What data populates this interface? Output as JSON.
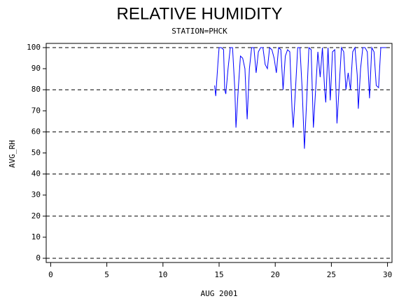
{
  "chart_data": {
    "type": "line",
    "title": "RELATIVE HUMIDITY",
    "subtitle": "STATION=PHCK",
    "x_label": "AUG 2001",
    "y_label": "AVG_RH",
    "xlim": [
      -0.4,
      30.4
    ],
    "xticks": [
      0,
      5,
      10,
      15,
      20,
      25,
      30
    ],
    "ylim": [
      -2,
      102
    ],
    "yticks": [
      0,
      10,
      20,
      30,
      40,
      50,
      60,
      70,
      80,
      90,
      100
    ],
    "grid_lines": [
      0,
      20,
      40,
      60,
      80,
      100
    ],
    "series": [
      {
        "color": "#0000ff",
        "x": [
          14.6,
          14.7,
          14.9,
          15.0,
          15.2,
          15.4,
          15.5,
          15.6,
          15.8,
          16.0,
          16.2,
          16.4,
          16.5,
          16.7,
          16.9,
          17.1,
          17.3,
          17.5,
          17.7,
          17.9,
          18.1,
          18.3,
          18.5,
          18.7,
          18.9,
          19.1,
          19.3,
          19.5,
          19.7,
          19.9,
          20.1,
          20.3,
          20.5,
          20.7,
          20.9,
          21.1,
          21.3,
          21.5,
          21.6,
          21.8,
          22.0,
          22.2,
          22.4,
          22.6,
          22.8,
          23.0,
          23.2,
          23.4,
          23.6,
          23.8,
          24.0,
          24.2,
          24.4,
          24.5,
          24.7,
          24.9,
          25.1,
          25.3,
          25.5,
          25.7,
          25.9,
          26.1,
          26.3,
          26.5,
          26.7,
          26.9,
          27.1,
          27.3,
          27.4,
          27.6,
          27.8,
          28.0,
          28.2,
          28.4,
          28.6,
          28.8,
          29.0,
          29.2,
          29.4,
          29.6,
          29.9
        ],
        "values": [
          82,
          77,
          93,
          100,
          100,
          99,
          80,
          78,
          90,
          100,
          100,
          80,
          62,
          80,
          96,
          95,
          90,
          66,
          90,
          100,
          100,
          88,
          98,
          100,
          100,
          92,
          90,
          100,
          99,
          95,
          88,
          100,
          99,
          80,
          96,
          99,
          98,
          70,
          62,
          80,
          100,
          100,
          80,
          52,
          75,
          100,
          99,
          62,
          80,
          98,
          86,
          100,
          80,
          74,
          100,
          75,
          98,
          99,
          64,
          82,
          100,
          98,
          80,
          88,
          80,
          98,
          100,
          87,
          71,
          90,
          100,
          100,
          98,
          76,
          100,
          98,
          82,
          81,
          100,
          100,
          100
        ]
      }
    ]
  }
}
